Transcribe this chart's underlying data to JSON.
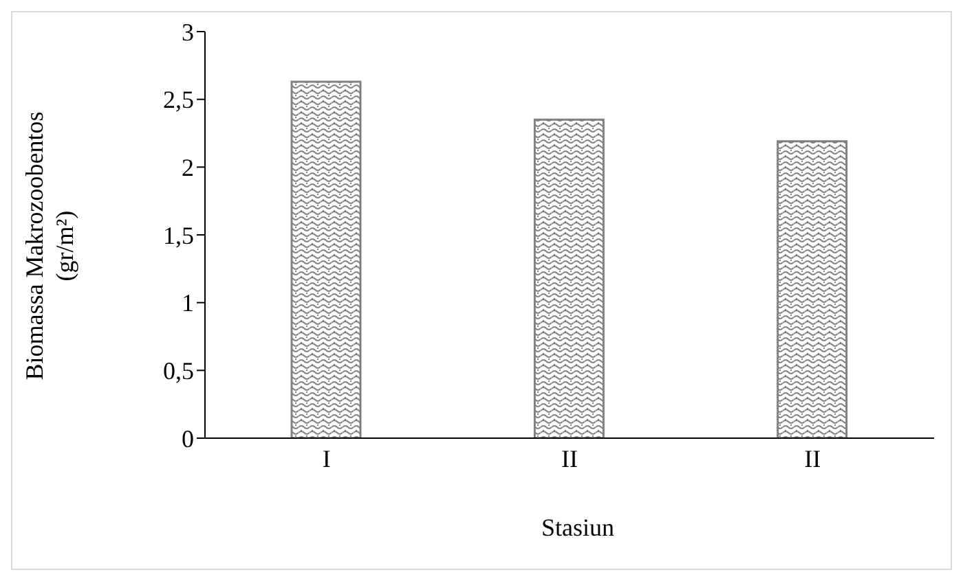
{
  "chart_data": {
    "type": "bar",
    "xlabel": "Stasiun",
    "ylabel": "Biomassa Makrozoobentos (gr/m²)",
    "categories": [
      "I",
      "II",
      "II"
    ],
    "values": [
      2.63,
      2.35,
      2.19
    ],
    "color": "#808080",
    "ylim": [
      0,
      3
    ],
    "yticks": [
      0,
      {
        "value": 0.5,
        "label": "0,5"
      },
      1,
      {
        "value": 1.5,
        "label": "1,5"
      },
      2,
      {
        "value": 2.5,
        "label": "2,5"
      },
      3
    ]
  }
}
